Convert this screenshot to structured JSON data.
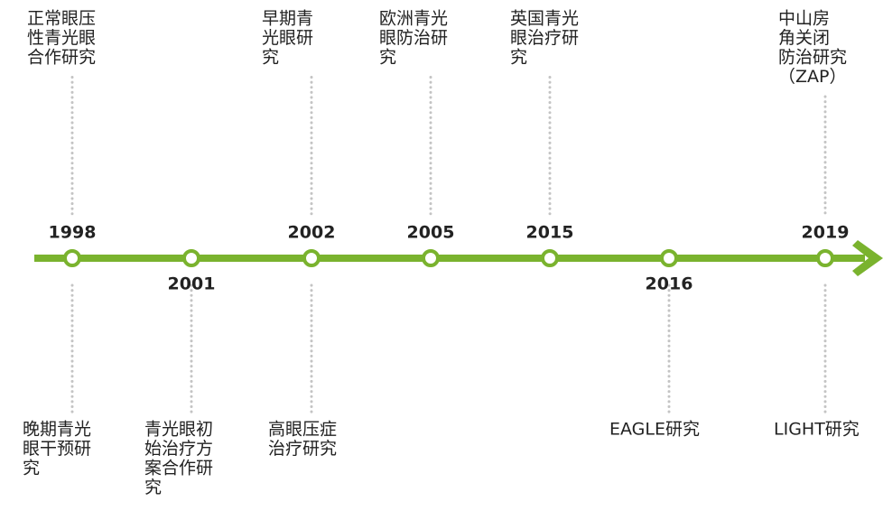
{
  "timeline": {
    "events": [
      {
        "year": "1998",
        "year_side": "above",
        "top": [
          "正常眼压",
          "性青光眼",
          "合作研究"
        ],
        "bottom": [
          "晚期青光",
          "眼干预研",
          "究"
        ]
      },
      {
        "year": "2001",
        "year_side": "below",
        "top": [],
        "bottom": [
          "青光眼初",
          "始治疗方",
          "案合作研",
          "究"
        ]
      },
      {
        "year": "2002",
        "year_side": "above",
        "top": [
          "早期青",
          "光眼研",
          "究"
        ],
        "bottom": [
          "高眼压症",
          "治疗研究"
        ]
      },
      {
        "year": "2005",
        "year_side": "above",
        "top": [
          "欧洲青光",
          "眼防治研",
          "究"
        ],
        "bottom": []
      },
      {
        "year": "2015",
        "year_side": "above",
        "top": [
          "英国青光",
          "眼治疗研",
          "究"
        ],
        "bottom": []
      },
      {
        "year": "2016",
        "year_side": "below",
        "top": [],
        "bottom": [
          "EAGLE研究"
        ]
      },
      {
        "year": "2019",
        "year_side": "above",
        "top": [
          "中山房",
          "角关闭",
          "防治研究",
          "（ZAP）"
        ],
        "bottom": [
          "LIGHT研究"
        ]
      }
    ]
  }
}
